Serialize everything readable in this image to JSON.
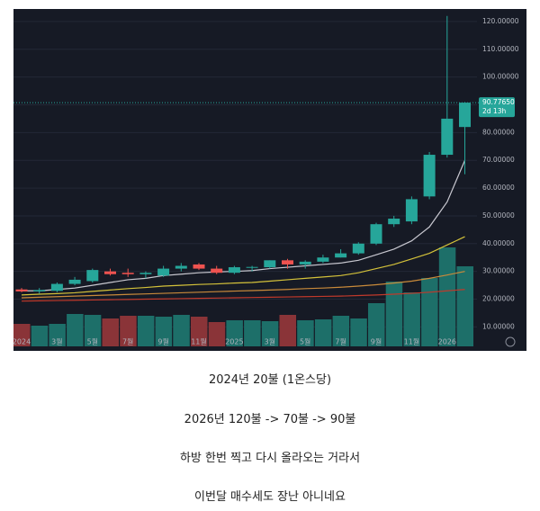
{
  "chart_data": {
    "type": "candlestick",
    "categories": [
      "2024",
      null,
      "3월",
      null,
      "5월",
      null,
      "7월",
      null,
      "9월",
      null,
      "11월",
      null,
      "2025",
      null,
      "3월",
      null,
      "5월",
      null,
      "7월",
      null,
      "9월",
      null,
      "11월",
      null,
      "2026",
      null
    ],
    "open": [
      23.5,
      22.8,
      23,
      25.5,
      26.5,
      30,
      29.5,
      29,
      28.5,
      31,
      32.5,
      31,
      29.5,
      31.5,
      31.5,
      34,
      32.5,
      33.5,
      35,
      36.5,
      40,
      47,
      48,
      57,
      72,
      82
    ],
    "high": [
      24,
      24,
      26,
      28,
      31,
      31,
      31,
      30,
      32,
      33,
      33,
      32,
      32,
      32,
      34,
      34.5,
      34,
      36,
      38,
      40.5,
      47.5,
      50,
      57,
      73,
      122,
      91
    ],
    "low": [
      22.5,
      22,
      22.5,
      25,
      26,
      28.5,
      28,
      27.5,
      28,
      30,
      30.5,
      29,
      29,
      30,
      31,
      31,
      31,
      33,
      35,
      36,
      39.5,
      46,
      47,
      56,
      71,
      65
    ],
    "close": [
      22.8,
      23.3,
      25.5,
      27,
      30.5,
      29,
      29,
      29.5,
      31,
      32,
      31,
      29.5,
      31.5,
      31.6,
      34,
      32.5,
      33.5,
      35,
      36.5,
      40,
      47,
      49,
      56,
      72,
      85,
      90.7765
    ],
    "up_color": "#26a69a",
    "down_color": "#ef5350",
    "volume": {
      "values": [
        25,
        23,
        25,
        36,
        35,
        31,
        34,
        34,
        33,
        35,
        33,
        27,
        29,
        29,
        28,
        35,
        29,
        30,
        34,
        31,
        48,
        72,
        60,
        76,
        110,
        89
      ],
      "up_color": "#1d6f69",
      "down_color": "#8a3438",
      "vlim": [
        0,
        120
      ]
    },
    "series": [
      {
        "color": "#c8c8d0",
        "values": [
          23,
          23,
          23.5,
          24,
          25,
          26,
          27,
          27.5,
          28.5,
          29,
          29.5,
          29.8,
          30,
          30.3,
          31,
          31.5,
          32,
          32.5,
          33,
          34,
          36,
          38,
          41,
          46,
          55,
          70
        ]
      },
      {
        "color": "#d4c23a",
        "values": [
          21.5,
          21.8,
          22,
          22.3,
          22.8,
          23.3,
          23.8,
          24.2,
          24.7,
          25,
          25.3,
          25.5,
          25.8,
          26,
          26.5,
          27,
          27.5,
          28,
          28.5,
          29.5,
          31,
          32.5,
          34.5,
          36.5,
          39.5,
          42.5
        ]
      },
      {
        "color": "#c98a3a",
        "values": [
          20.5,
          20.7,
          20.9,
          21.1,
          21.3,
          21.5,
          21.7,
          21.9,
          22.1,
          22.3,
          22.5,
          22.7,
          22.9,
          23.1,
          23.3,
          23.5,
          23.8,
          24,
          24.3,
          24.7,
          25.2,
          25.8,
          26.5,
          27.5,
          28.7,
          30
        ]
      },
      {
        "color": "#c0392b",
        "values": [
          19.3,
          19.4,
          19.5,
          19.6,
          19.7,
          19.8,
          19.9,
          20,
          20.1,
          20.2,
          20.3,
          20.4,
          20.5,
          20.6,
          20.7,
          20.8,
          20.9,
          21,
          21.1,
          21.3,
          21.5,
          21.8,
          22.1,
          22.5,
          23,
          23.5
        ]
      }
    ],
    "ylim": [
      3,
      124.5
    ],
    "yticks": [
      {
        "value": 10,
        "label": "10.00000"
      },
      {
        "value": 20,
        "label": "20.00000"
      },
      {
        "value": 30,
        "label": "30.00000"
      },
      {
        "value": 40,
        "label": "40.00000"
      },
      {
        "value": 50,
        "label": "50.00000"
      },
      {
        "value": 60,
        "label": "60.00000"
      },
      {
        "value": 70,
        "label": "70.00000"
      },
      {
        "value": 80,
        "label": "80.00000"
      },
      {
        "value": 90,
        "label": "90.00000"
      },
      {
        "value": 100,
        "label": "100.00000"
      },
      {
        "value": 110,
        "label": "110.00000"
      },
      {
        "value": 120,
        "label": "120.00000"
      }
    ],
    "last_price": {
      "value": 90.7765,
      "label": "90.77650"
    },
    "countdown": "2d 13h",
    "grid": true
  },
  "post": {
    "lines": [
      "2024년 20불 (1온스당)",
      "2026년 120불 -> 70불 -> 90불",
      "하방 한번 찍고 다시 올라오는 거라서",
      "이번달 매수세도 장난 아니네요"
    ]
  }
}
